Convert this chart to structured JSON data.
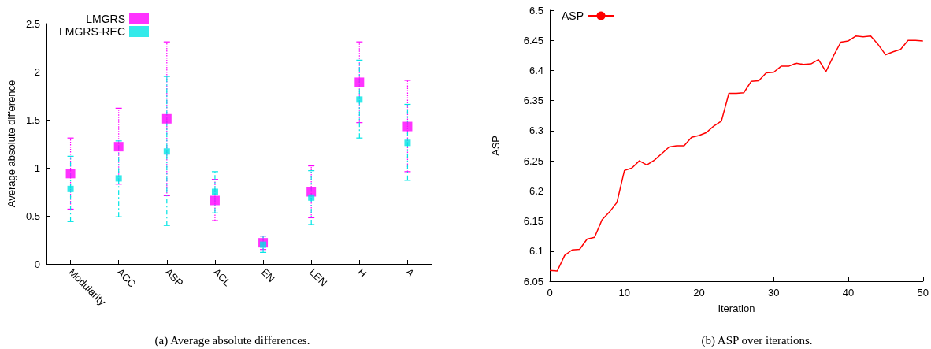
{
  "chart_data": [
    {
      "type": "scatter",
      "ylabel": "Average absolute difference",
      "categories": [
        "Modularity",
        "ACC",
        "ASP",
        "ACL",
        "EN",
        "LEN",
        "H",
        "A"
      ],
      "ylim": [
        0,
        2.5
      ],
      "yticks": [
        0,
        0.5,
        1,
        1.5,
        2,
        2.5
      ],
      "legend": "top left",
      "marker": "square",
      "annotations": [
        "(a) Average absolute differences."
      ],
      "series": [
        {
          "name": "LMGRS",
          "color": "#ff00ff",
          "line_style": "dotted",
          "values": [
            0.94,
            1.22,
            1.51,
            0.66,
            0.22,
            0.75,
            1.89,
            1.43
          ],
          "errors": [
            [
              0.57,
              1.31
            ],
            [
              0.83,
              1.62
            ],
            [
              0.71,
              2.31
            ],
            [
              0.45,
              0.88
            ],
            [
              0.15,
              0.29
            ],
            [
              0.48,
              1.02
            ],
            [
              1.47,
              2.31
            ],
            [
              0.96,
              1.91
            ]
          ]
        },
        {
          "name": "LMGRS-REC",
          "color": "#00e5e5",
          "line_style": "dashed",
          "values": [
            0.78,
            0.89,
            1.17,
            0.75,
            0.2,
            0.69,
            1.71,
            1.26
          ],
          "errors": [
            [
              0.44,
              1.12
            ],
            [
              0.49,
              1.28
            ],
            [
              0.4,
              1.95
            ],
            [
              0.53,
              0.96
            ],
            [
              0.12,
              0.29
            ],
            [
              0.41,
              0.97
            ],
            [
              1.31,
              2.12
            ],
            [
              0.87,
              1.66
            ]
          ]
        }
      ]
    },
    {
      "type": "line",
      "xlabel": "Iteration",
      "ylabel": "ASP",
      "xlim": [
        0,
        50
      ],
      "xticks": [
        0,
        10,
        20,
        30,
        40,
        50
      ],
      "ylim": [
        6.05,
        6.5
      ],
      "yticks": [
        6.05,
        6.1,
        6.15,
        6.2,
        6.25,
        6.3,
        6.35,
        6.4,
        6.45,
        6.5
      ],
      "legend": "top left",
      "marker": "none",
      "annotations": [
        "(b) ASP over iterations."
      ],
      "x": [
        0,
        1,
        2,
        3,
        4,
        5,
        6,
        7,
        8,
        9,
        10,
        11,
        12,
        13,
        14,
        15,
        16,
        17,
        18,
        19,
        20,
        21,
        22,
        23,
        24,
        25,
        26,
        27,
        28,
        29,
        30,
        31,
        32,
        33,
        34,
        35,
        36,
        37,
        38,
        39,
        40,
        41,
        42,
        43,
        44,
        45,
        46,
        47,
        48,
        49,
        50
      ],
      "series": [
        {
          "name": "ASP",
          "color": "#ff0000",
          "values": [
            6.068,
            6.067,
            6.093,
            6.102,
            6.103,
            6.12,
            6.123,
            6.152,
            6.165,
            6.181,
            6.234,
            6.238,
            6.25,
            6.243,
            6.251,
            6.262,
            6.273,
            6.275,
            6.275,
            6.289,
            6.292,
            6.297,
            6.308,
            6.316,
            6.362,
            6.362,
            6.363,
            6.382,
            6.383,
            6.396,
            6.397,
            6.407,
            6.407,
            6.412,
            6.41,
            6.411,
            6.418,
            6.398,
            6.424,
            6.447,
            6.449,
            6.457,
            6.456,
            6.457,
            6.443,
            6.426,
            6.431,
            6.435,
            6.45,
            6.45,
            6.449
          ]
        }
      ]
    }
  ]
}
